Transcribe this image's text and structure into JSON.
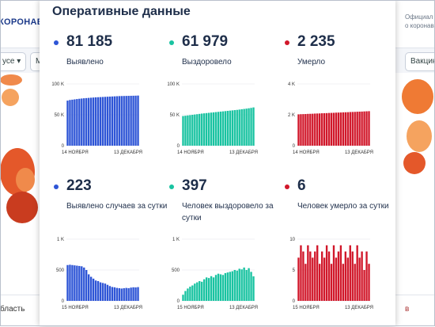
{
  "background": {
    "logo": "КОРОНАВИ",
    "right_text_1": "Официал",
    "right_text_2": "о коронав",
    "pill_left": "усе ▾",
    "pill_mid": "М",
    "pill_right": "Вакцин",
    "bottom_left": "бласть",
    "bottom_right": "в"
  },
  "panel": {
    "title": "Оперативные данные",
    "stats": [
      {
        "value": "81 185",
        "label": "Выявлено",
        "color": "#2e55d6"
      },
      {
        "value": "61 979",
        "label": "Выздоровело",
        "color": "#19c3a1"
      },
      {
        "value": "2 235",
        "label": "Умерло",
        "color": "#d1172a"
      },
      {
        "value": "223",
        "label": "Выявлено случаев за сутки",
        "color": "#2e55d6"
      },
      {
        "value": "397",
        "label": "Человек выздоровело за сутки",
        "color": "#19c3a1"
      },
      {
        "value": "6",
        "label": "Человек умерло за сутки",
        "color": "#d1172a"
      }
    ]
  },
  "chart_data": [
    {
      "type": "bar",
      "color": "#2e55d6",
      "ylim": [
        0,
        100000
      ],
      "yticks": [
        "100 K",
        "50 K",
        "0"
      ],
      "xticks": [
        "14 НОЯБРЯ",
        "13 ДЕКАБРЯ"
      ],
      "values": [
        73000,
        74000,
        74500,
        75000,
        75500,
        76000,
        76400,
        76800,
        77100,
        77400,
        77700,
        78000,
        78300,
        78500,
        78700,
        78900,
        79100,
        79300,
        79500,
        79700,
        79900,
        80100,
        80300,
        80400,
        80500,
        80600,
        80700,
        80800,
        80900,
        81000,
        81185
      ]
    },
    {
      "type": "bar",
      "color": "#19c3a1",
      "ylim": [
        0,
        100000
      ],
      "yticks": [
        "100 K",
        "50 K",
        "0"
      ],
      "xticks": [
        "14 НОЯБРЯ",
        "13 ДЕКАБРЯ"
      ],
      "values": [
        48000,
        48500,
        49000,
        49500,
        50000,
        50500,
        51000,
        51500,
        52000,
        52400,
        52800,
        53200,
        53600,
        54000,
        54400,
        54800,
        55200,
        55600,
        56000,
        56400,
        56800,
        57200,
        57600,
        58000,
        58500,
        59000,
        59500,
        60000,
        60600,
        61200,
        61979
      ]
    },
    {
      "type": "bar",
      "color": "#d1172a",
      "ylim": [
        0,
        4000
      ],
      "yticks": [
        "4 K",
        "2 K",
        "0"
      ],
      "xticks": [
        "14 НОЯБРЯ",
        "13 ДЕКАБРЯ"
      ],
      "values": [
        2030,
        2040,
        2045,
        2050,
        2060,
        2065,
        2070,
        2080,
        2085,
        2090,
        2100,
        2105,
        2110,
        2120,
        2125,
        2130,
        2140,
        2145,
        2150,
        2160,
        2165,
        2170,
        2180,
        2185,
        2190,
        2200,
        2205,
        2210,
        2220,
        2228,
        2235
      ]
    },
    {
      "type": "bar",
      "color": "#2e55d6",
      "ylim": [
        0,
        1000
      ],
      "yticks": [
        "1 K",
        "500",
        "0"
      ],
      "xticks": [
        "15 НОЯБРЯ",
        "13 ДЕКАБРЯ"
      ],
      "values": [
        580,
        585,
        580,
        575,
        570,
        565,
        560,
        540,
        500,
        430,
        390,
        360,
        330,
        320,
        300,
        290,
        280,
        260,
        240,
        225,
        220,
        210,
        205,
        200,
        205,
        210,
        205,
        215,
        220,
        218,
        223
      ]
    },
    {
      "type": "bar",
      "color": "#19c3a1",
      "ylim": [
        0,
        1000
      ],
      "yticks": [
        "1 K",
        "500",
        "0"
      ],
      "xticks": [
        "15 НОЯБРЯ",
        "13 ДЕКАБРЯ"
      ],
      "values": [
        100,
        160,
        200,
        230,
        250,
        280,
        300,
        320,
        310,
        350,
        380,
        370,
        400,
        380,
        420,
        440,
        430,
        420,
        450,
        460,
        470,
        480,
        500,
        490,
        520,
        510,
        540,
        500,
        530,
        470,
        397
      ]
    },
    {
      "type": "bar",
      "color": "#d1172a",
      "ylim": [
        0,
        10
      ],
      "yticks": [
        "10",
        "5",
        "0"
      ],
      "xticks": [
        "15 НОЯБРЯ",
        "13 ДЕКАБРЯ"
      ],
      "values": [
        7,
        9,
        8,
        6,
        9,
        8,
        7,
        8,
        9,
        6,
        8,
        7,
        9,
        8,
        6,
        9,
        7,
        8,
        9,
        6,
        8,
        7,
        9,
        8,
        6,
        9,
        7,
        8,
        5,
        8,
        6
      ]
    }
  ]
}
